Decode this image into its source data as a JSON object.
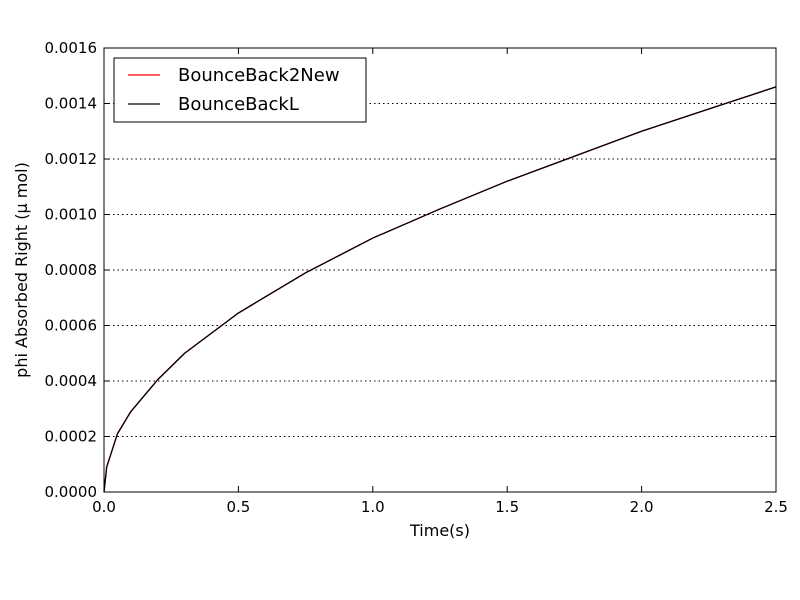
{
  "chart_data": {
    "type": "line",
    "title": "",
    "xlabel": "Time(s)",
    "ylabel": "phi Absorbed Right (μ mol)",
    "xlim": [
      0.0,
      2.5
    ],
    "ylim": [
      0.0,
      0.0016
    ],
    "x_ticks": [
      0.0,
      0.5,
      1.0,
      1.5,
      2.0,
      2.5
    ],
    "x_tick_labels": [
      "0.0",
      "0.5",
      "1.0",
      "1.5",
      "2.0",
      "2.5"
    ],
    "y_ticks": [
      0.0,
      0.0002,
      0.0004,
      0.0006,
      0.0008,
      0.001,
      0.0012,
      0.0014,
      0.0016
    ],
    "y_tick_labels": [
      "0.0000",
      "0.0002",
      "0.0004",
      "0.0006",
      "0.0008",
      "0.0010",
      "0.0012",
      "0.0014",
      "0.0016"
    ],
    "grid": "horizontal dotted",
    "legend_position": "top-left",
    "series": [
      {
        "name": "BounceBack2New",
        "color": "#ff0000",
        "x": [
          0.0,
          0.01,
          0.05,
          0.1,
          0.2,
          0.3,
          0.5,
          0.75,
          1.0,
          1.25,
          1.5,
          1.75,
          2.0,
          2.25,
          2.5
        ],
        "values": [
          0.0,
          9e-05,
          0.00021,
          0.00029,
          0.000405,
          0.0005,
          0.000645,
          0.00079,
          0.000915,
          0.00102,
          0.00112,
          0.00121,
          0.0013,
          0.00138,
          0.00146
        ]
      },
      {
        "name": "BounceBackL",
        "color": "#000000",
        "x": [
          0.0,
          0.01,
          0.05,
          0.1,
          0.2,
          0.3,
          0.5,
          0.75,
          1.0,
          1.25,
          1.5,
          1.75,
          2.0,
          2.25,
          2.5
        ],
        "values": [
          0.0,
          9e-05,
          0.00021,
          0.00029,
          0.000405,
          0.0005,
          0.000645,
          0.00079,
          0.000915,
          0.00102,
          0.00112,
          0.00121,
          0.0013,
          0.00138,
          0.00146
        ]
      }
    ]
  }
}
